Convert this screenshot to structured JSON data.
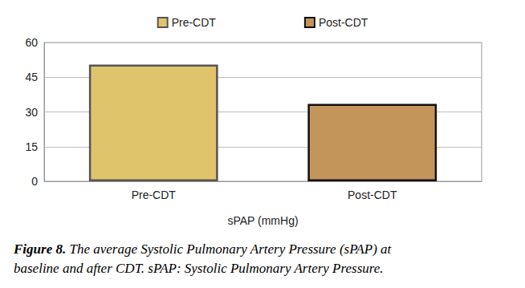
{
  "chart_data": {
    "type": "bar",
    "title": "Figure 8. The average Systolic Pulmonary Artery Pressure (sPAP) at baseline and after CDT. sPAP: Systolic Pulmonary Artery Pressure.",
    "x_label": "sPAP (mmHg)",
    "categories": [
      "Pre-CDT",
      "Post-CDT"
    ],
    "series": [
      {
        "name": "Pre-CDT",
        "color": "#e0c46c",
        "values": [
          50.5,
          null
        ]
      },
      {
        "name": "Post-CDT",
        "color": "#c4955a",
        "values": [
          null,
          33.5
        ]
      }
    ],
    "ylim": [
      0,
      60
    ],
    "yticks": [
      0,
      15,
      30,
      45,
      60
    ],
    "grid": true,
    "legend": "top"
  }
}
